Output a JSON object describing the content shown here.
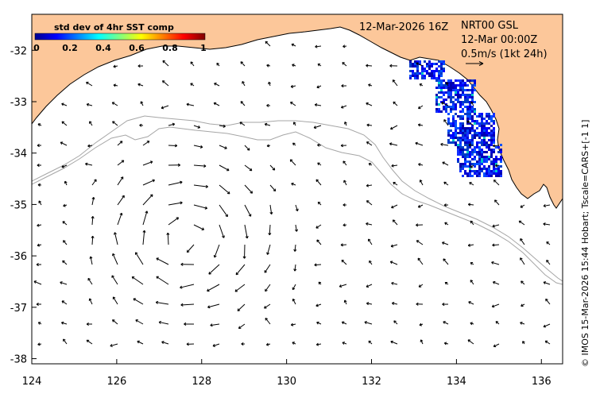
{
  "map": {
    "lon_range": [
      124,
      136.5
    ],
    "lat_range": [
      -38.1,
      -31.3
    ],
    "x_ticks": [
      124,
      126,
      128,
      130,
      132,
      134,
      136
    ],
    "y_ticks": [
      -32,
      -33,
      -34,
      -35,
      -36,
      -37,
      -38
    ],
    "x_tick_labels": [
      "124",
      "126",
      "128",
      "130",
      "132",
      "134",
      "136"
    ],
    "y_tick_labels": [
      "-32",
      "-33",
      "-34",
      "-35",
      "-36",
      "-37",
      "-38"
    ],
    "land_color": "#fcc79a",
    "coast_color": "#000000",
    "bathymetry_contour_color": "#a6a6a6",
    "arrow_color": "#000000"
  },
  "colorbar": {
    "title": "std dev of 4hr SST comp",
    "ticks": [
      "0",
      "0.2",
      "0.4",
      "0.6",
      "0.8",
      "1"
    ],
    "colormap": [
      "#00008f",
      "#0000ff",
      "#0080ff",
      "#00ffff",
      "#80ff80",
      "#ffff00",
      "#ff8000",
      "#ff0000",
      "#800000"
    ]
  },
  "info": {
    "date": "12-Mar-2026 16Z",
    "product": "NRT00 GSL",
    "time": "12-Mar 00:00Z",
    "scale": "0.5m/s (1kt 24h)"
  },
  "credit": "© IMOS 15-Mar-2026 15:44 Hobart; Tscale=CARS+[-1 1]"
}
